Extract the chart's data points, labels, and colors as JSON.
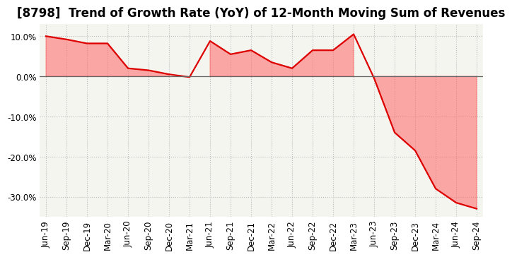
{
  "title": "[8798]  Trend of Growth Rate (YoY) of 12-Month Moving Sum of Revenues",
  "line_color": "#DD0000",
  "fill_color": "#FF6666",
  "background_color": "#FFFFFF",
  "plot_bg_color": "#F5F5F0",
  "grid_color": "#BBBBBB",
  "x_labels": [
    "Jun-19",
    "Sep-19",
    "Dec-19",
    "Mar-20",
    "Jun-20",
    "Sep-20",
    "Dec-20",
    "Mar-21",
    "Jun-21",
    "Sep-21",
    "Dec-21",
    "Mar-22",
    "Jun-22",
    "Sep-22",
    "Dec-22",
    "Mar-23",
    "Jun-23",
    "Sep-23",
    "Dec-23",
    "Mar-24",
    "Jun-24",
    "Sep-24"
  ],
  "y_values": [
    10.0,
    9.2,
    8.2,
    8.2,
    2.0,
    1.5,
    0.5,
    -0.2,
    8.8,
    5.5,
    6.5,
    3.5,
    2.0,
    6.5,
    6.5,
    10.5,
    -0.5,
    -14.0,
    -18.5,
    -28.0,
    -31.5,
    -33.0
  ],
  "ylim": [
    -35,
    13
  ],
  "yticks": [
    10.0,
    0.0,
    -10.0,
    -20.0,
    -30.0
  ],
  "title_fontsize": 12,
  "tick_fontsize": 8.5,
  "line_width": 1.6
}
